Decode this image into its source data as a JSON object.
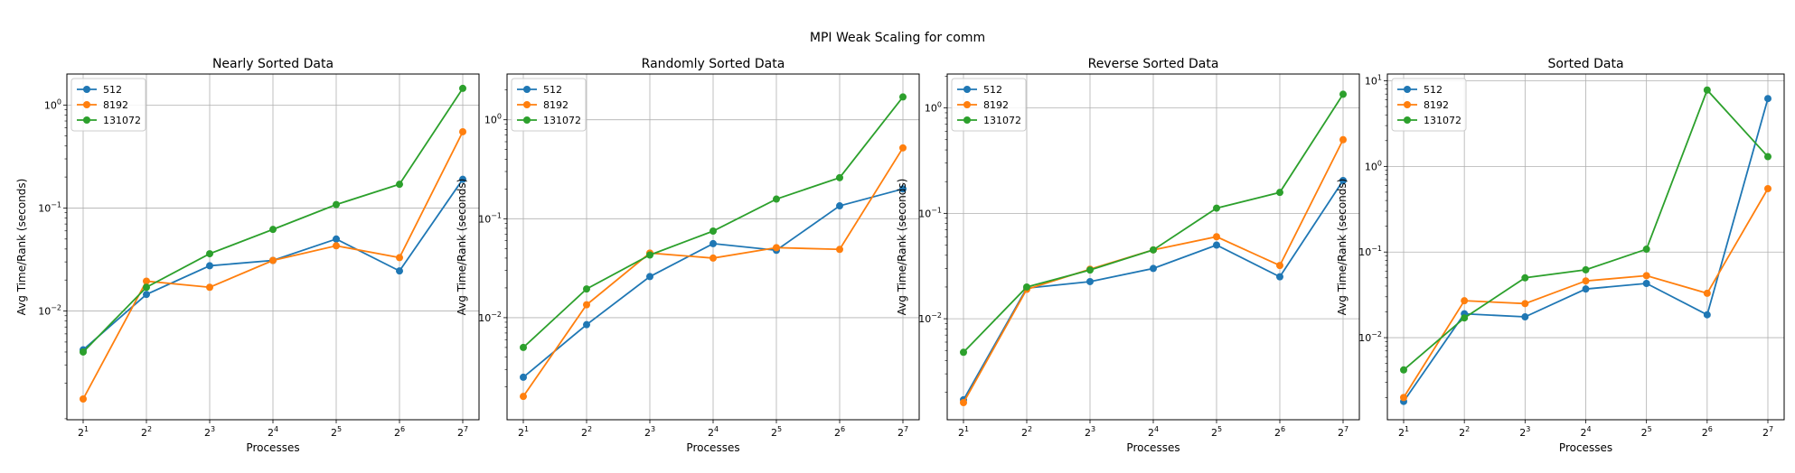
{
  "figure": {
    "suptitle": "MPI Weak Scaling for comm"
  },
  "chart_data": [
    {
      "type": "line",
      "title": "Nearly Sorted Data",
      "xlabel": "Processes",
      "ylabel": "Avg Time/Rank (seconds)",
      "xscale": "log2",
      "yscale": "log10",
      "x": [
        2,
        4,
        8,
        16,
        32,
        64,
        128
      ],
      "xticks": [
        "2^1",
        "2^2",
        "2^3",
        "2^4",
        "2^5",
        "2^6",
        "2^7"
      ],
      "ylim": [
        0.00088,
        2.0
      ],
      "yticks": [
        0.01,
        0.1,
        1
      ],
      "yticklabels": [
        "10^-2",
        "10^-1",
        "10^0"
      ],
      "grid": true,
      "legend": "upper-left",
      "series": [
        {
          "name": "512",
          "color": "#1f77b4",
          "values": [
            0.0042,
            0.0145,
            0.0275,
            0.031,
            0.05,
            0.0245,
            0.19
          ]
        },
        {
          "name": "8192",
          "color": "#ff7f0e",
          "values": [
            0.0014,
            0.0195,
            0.017,
            0.031,
            0.043,
            0.033,
            0.55
          ]
        },
        {
          "name": "131072",
          "color": "#2ca02c",
          "values": [
            0.004,
            0.017,
            0.036,
            0.062,
            0.108,
            0.17,
            1.45
          ]
        }
      ]
    },
    {
      "type": "line",
      "title": "Randomly Sorted Data",
      "xlabel": "Processes",
      "ylabel": "Avg Time/Rank (seconds)",
      "xscale": "log2",
      "yscale": "log10",
      "x": [
        2,
        4,
        8,
        16,
        32,
        64,
        128
      ],
      "xticks": [
        "2^1",
        "2^2",
        "2^3",
        "2^4",
        "2^5",
        "2^6",
        "2^7"
      ],
      "ylim": [
        0.00093,
        2.9
      ],
      "yticks": [
        0.01,
        0.1,
        1
      ],
      "yticklabels": [
        "10^-2",
        "10^-1",
        "10^0"
      ],
      "grid": true,
      "legend": "upper-left",
      "series": [
        {
          "name": "512",
          "color": "#1f77b4",
          "values": [
            0.0025,
            0.0085,
            0.026,
            0.056,
            0.048,
            0.135,
            0.2
          ]
        },
        {
          "name": "8192",
          "color": "#ff7f0e",
          "values": [
            0.0016,
            0.0135,
            0.045,
            0.04,
            0.051,
            0.049,
            0.52
          ]
        },
        {
          "name": "131072",
          "color": "#2ca02c",
          "values": [
            0.005,
            0.0195,
            0.043,
            0.075,
            0.158,
            0.26,
            1.7
          ]
        }
      ]
    },
    {
      "type": "line",
      "title": "Reverse Sorted Data",
      "xlabel": "Processes",
      "ylabel": "Avg Time/Rank (seconds)",
      "xscale": "log2",
      "yscale": "log10",
      "x": [
        2,
        4,
        8,
        16,
        32,
        64,
        128
      ],
      "xticks": [
        "2^1",
        "2^2",
        "2^3",
        "2^4",
        "2^5",
        "2^6",
        "2^7"
      ],
      "ylim": [
        0.0011,
        2.1
      ],
      "yticks": [
        0.01,
        0.1,
        1
      ],
      "yticklabels": [
        "10^-2",
        "10^-1",
        "10^0"
      ],
      "grid": true,
      "legend": "upper-left",
      "series": [
        {
          "name": "512",
          "color": "#1f77b4",
          "values": [
            0.0017,
            0.0195,
            0.0225,
            0.03,
            0.05,
            0.025,
            0.205
          ]
        },
        {
          "name": "8192",
          "color": "#ff7f0e",
          "values": [
            0.0016,
            0.019,
            0.0295,
            0.045,
            0.06,
            0.032,
            0.5
          ]
        },
        {
          "name": "131072",
          "color": "#2ca02c",
          "values": [
            0.0048,
            0.02,
            0.029,
            0.045,
            0.112,
            0.158,
            1.35
          ]
        }
      ]
    },
    {
      "type": "line",
      "title": "Sorted Data",
      "xlabel": "Processes",
      "ylabel": "Avg Time/Rank (seconds)",
      "xscale": "log2",
      "yscale": "log10",
      "x": [
        2,
        4,
        8,
        16,
        32,
        64,
        128
      ],
      "xticks": [
        "2^1",
        "2^2",
        "2^3",
        "2^4",
        "2^5",
        "2^6",
        "2^7"
      ],
      "ylim": [
        0.0011,
        12.0
      ],
      "yticks": [
        0.01,
        0.1,
        1,
        10
      ],
      "yticklabels": [
        "10^-2",
        "10^-1",
        "10^0",
        "10^1"
      ],
      "grid": true,
      "legend": "upper-left",
      "series": [
        {
          "name": "512",
          "color": "#1f77b4",
          "values": [
            0.0018,
            0.019,
            0.0175,
            0.037,
            0.043,
            0.0185,
            6.2
          ]
        },
        {
          "name": "8192",
          "color": "#ff7f0e",
          "values": [
            0.002,
            0.027,
            0.025,
            0.046,
            0.053,
            0.033,
            0.55
          ]
        },
        {
          "name": "131072",
          "color": "#2ca02c",
          "values": [
            0.0042,
            0.017,
            0.05,
            0.062,
            0.108,
            7.8,
            1.3
          ]
        }
      ]
    }
  ]
}
